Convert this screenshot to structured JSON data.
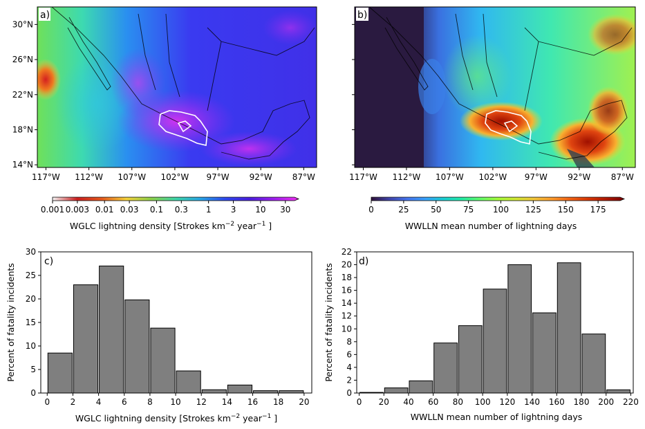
{
  "chart_data": [
    {
      "panel": "a)",
      "type": "heatmap",
      "lat_ticks": [
        "30°N",
        "26°N",
        "22°N",
        "18°N",
        "14°N"
      ],
      "lat_values": [
        30,
        26,
        22,
        18,
        14
      ],
      "lon_ticks": [
        "117°W",
        "112°W",
        "107°W",
        "102°W",
        "97°W",
        "92°W",
        "87°W"
      ],
      "lon_values": [
        -117,
        -112,
        -107,
        -102,
        -97,
        -92,
        -87
      ],
      "lon_range": [
        -118,
        -85.5
      ],
      "lat_range": [
        13.7,
        32
      ],
      "colorbar": {
        "label_main": "WGLC lightning density [Strokes km",
        "label_sup1": "−2",
        "label_mid": " year",
        "label_sup2": "−1",
        "label_end": " ]",
        "ticks": [
          "0.001",
          "0.003",
          "0.01",
          "0.03",
          "0.1",
          "0.3",
          "1",
          "3",
          "10",
          "30"
        ],
        "tick_values": [
          0.001,
          0.003,
          0.01,
          0.03,
          0.1,
          0.3,
          1,
          3,
          10,
          30
        ],
        "scale": "log",
        "range": [
          0.001,
          45
        ],
        "colors": [
          "#f5f5f5",
          "#cc2020",
          "#e65a1e",
          "#f6d23c",
          "#8fd24a",
          "#3fd6a8",
          "#2aa7e6",
          "#2e4bf0",
          "#4a1fe0",
          "#a020f0",
          "#f030f0"
        ]
      }
    },
    {
      "panel": "b)",
      "type": "heatmap",
      "lon_ticks": [
        "117°W",
        "112°W",
        "107°W",
        "102°W",
        "97°W",
        "92°W",
        "87°W"
      ],
      "lon_values": [
        -117,
        -112,
        -107,
        -102,
        -97,
        -92,
        -87
      ],
      "lon_range": [
        -118,
        -85.5
      ],
      "lat_range": [
        13.7,
        32
      ],
      "colorbar": {
        "label": "WWLLN mean number of lightning days",
        "ticks": [
          "0",
          "25",
          "50",
          "75",
          "100",
          "125",
          "150",
          "175"
        ],
        "tick_values": [
          0,
          25,
          50,
          75,
          100,
          125,
          150,
          175
        ],
        "range": [
          0,
          192
        ],
        "colors": [
          "#30123b",
          "#4145ab",
          "#4675ed",
          "#39a2fc",
          "#1bcfd4",
          "#24eca6",
          "#61fc6c",
          "#a4fc3b",
          "#d1e834",
          "#f3c63a",
          "#fe9b2d",
          "#f36315",
          "#d93806",
          "#b11901",
          "#7a0403"
        ]
      }
    },
    {
      "panel": "c)",
      "type": "bar",
      "xlabel_main": "WGLC lightning density [Strokes km",
      "xlabel_sup1": "−2",
      "xlabel_mid": " year",
      "xlabel_sup2": "−1",
      "xlabel_end": " ]",
      "ylabel": "Percent of fatality incidents",
      "bin_edges": [
        0,
        2,
        4,
        6,
        8,
        10,
        12,
        14,
        16,
        18,
        20
      ],
      "values": [
        8.5,
        23,
        27,
        19.8,
        13.8,
        4.7,
        0.7,
        1.7,
        0.5,
        0.5
      ],
      "xlim": [
        -0.5,
        20.6
      ],
      "ylim": [
        0,
        30
      ],
      "xticks": [
        0,
        2,
        4,
        6,
        8,
        10,
        12,
        14,
        16,
        18,
        20
      ],
      "yticks": [
        0,
        5,
        10,
        15,
        20,
        25,
        30
      ],
      "bar_color": "#7f7f7f"
    },
    {
      "panel": "d)",
      "type": "bar",
      "xlabel": "WWLLN mean number of lightning days",
      "ylabel": "Percent of fatality incidents",
      "bin_edges": [
        0,
        20,
        40,
        60,
        80,
        100,
        120,
        140,
        160,
        180,
        200,
        220
      ],
      "values": [
        0.1,
        0.8,
        1.9,
        7.8,
        10.5,
        16.2,
        20.0,
        12.5,
        20.3,
        9.2,
        0.5
      ],
      "xlim": [
        -2,
        222
      ],
      "ylim": [
        0,
        22
      ],
      "xticks": [
        0,
        20,
        40,
        60,
        80,
        100,
        120,
        140,
        160,
        180,
        200,
        220
      ],
      "yticks": [
        0,
        2,
        4,
        6,
        8,
        10,
        12,
        14,
        16,
        18,
        20,
        22
      ],
      "bar_color": "#7f7f7f"
    }
  ]
}
